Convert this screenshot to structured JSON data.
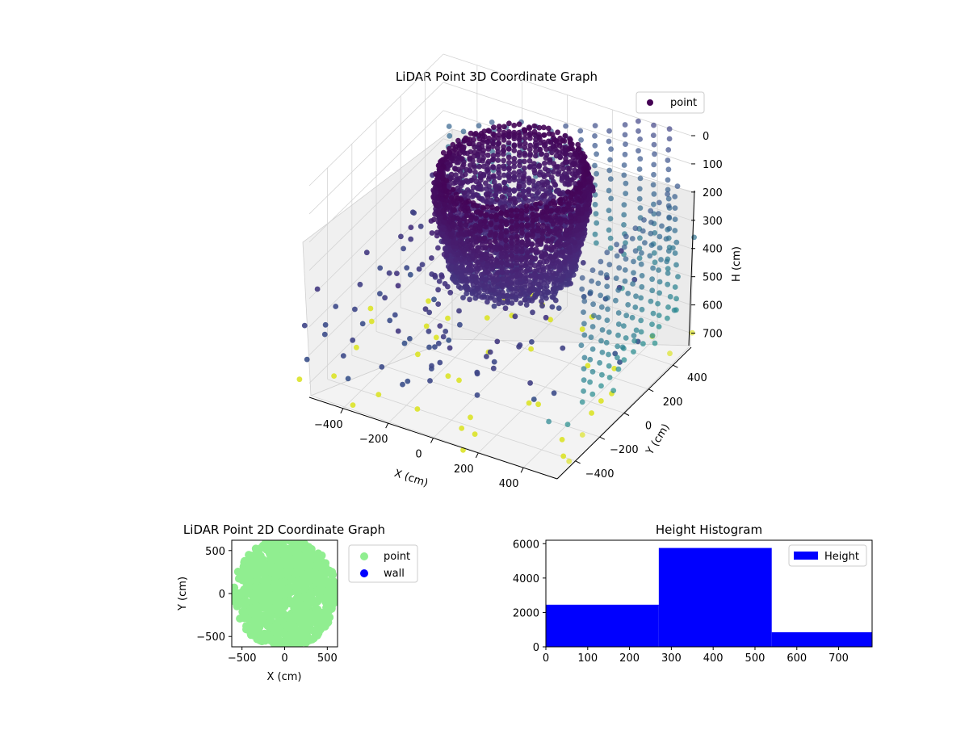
{
  "chart_data": [
    {
      "type": "scatter3d",
      "title": "LiDAR Point 3D Coordinate Graph",
      "xlabel": "X (cm)",
      "ylabel": "Y (cm)",
      "zlabel": "H (cm)",
      "xticks": [
        "−400",
        "−200",
        "0",
        "200",
        "400"
      ],
      "yticks": [
        "400",
        "200",
        "0",
        "−200",
        "−400"
      ],
      "zticks": [
        "0",
        "100",
        "200",
        "300",
        "400",
        "500",
        "600",
        "700"
      ],
      "xlim": [
        -550,
        550
      ],
      "ylim": [
        -550,
        550
      ],
      "zlim": [
        0,
        750
      ],
      "zinverted": true,
      "legend": [
        "point"
      ],
      "legend_loc": "upper right",
      "colormap": "viridis",
      "grid": true
    },
    {
      "type": "scatter",
      "title": "LiDAR Point 2D Coordinate Graph",
      "xlabel": "X (cm)",
      "ylabel": "Y (cm)",
      "xticks": [
        "−500",
        "0",
        "500"
      ],
      "yticks": [
        "500",
        "0",
        "−500"
      ],
      "xlim": [
        -620,
        620
      ],
      "ylim": [
        -620,
        620
      ],
      "series": [
        {
          "name": "point",
          "color": "#90ee90"
        },
        {
          "name": "wall",
          "color": "#0000ff"
        }
      ],
      "legend_loc": "outside right"
    },
    {
      "type": "bar",
      "title": "Height Histogram",
      "xticks": [
        "0",
        "100",
        "200",
        "300",
        "400",
        "500",
        "600",
        "700"
      ],
      "yticks": [
        "6000",
        "4000",
        "2000",
        "0"
      ],
      "xlim": [
        0,
        780
      ],
      "ylim": [
        0,
        6200
      ],
      "bins": [
        {
          "x0": 0,
          "x1": 270,
          "count": 2450
        },
        {
          "x0": 270,
          "x1": 540,
          "count": 5750
        },
        {
          "x0": 540,
          "x1": 780,
          "count": 850
        }
      ],
      "series": [
        {
          "name": "Height",
          "color": "#0000ff"
        }
      ],
      "legend_loc": "upper right"
    }
  ]
}
